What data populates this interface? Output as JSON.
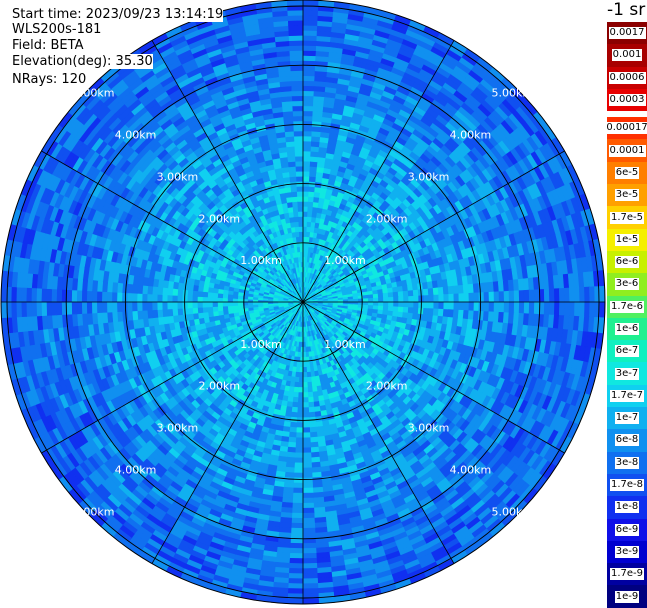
{
  "header": {
    "start_time": "Start time: 2023/09/23 13:14:19",
    "instrument": "WLS200s-181",
    "field": "Field: BETA",
    "elevation": "Elevation(deg): 35.30",
    "nrays": "NRays: 120"
  },
  "colorbar": {
    "unit_label": "-1 sr",
    "top_group": [
      {
        "label": "0.0017",
        "color": "#8b0000"
      },
      {
        "label": "0.001",
        "color": "#a80000"
      },
      {
        "label": "0.0006",
        "color": "#c80000"
      },
      {
        "label": "0.0003",
        "color": "#e80000"
      }
    ],
    "main_group": [
      {
        "label": "0.00017",
        "color": "#ff3000"
      },
      {
        "label": "0.0001",
        "color": "#ff5a00"
      },
      {
        "label": "6e-5",
        "color": "#ff7f00"
      },
      {
        "label": "3e-5",
        "color": "#ffa000"
      },
      {
        "label": "1.7e-5",
        "color": "#ffd000"
      },
      {
        "label": "1e-5",
        "color": "#f5ef00"
      },
      {
        "label": "6e-6",
        "color": "#c8f000"
      },
      {
        "label": "3e-6",
        "color": "#90ee20"
      },
      {
        "label": "1.7e-6",
        "color": "#50f060"
      },
      {
        "label": "1e-6",
        "color": "#20f090"
      },
      {
        "label": "6e-7",
        "color": "#10f0c0"
      },
      {
        "label": "3e-7",
        "color": "#10e8e0"
      },
      {
        "label": "1.7e-7",
        "color": "#10d0f0"
      },
      {
        "label": "1e-7",
        "color": "#10b0f0"
      },
      {
        "label": "6e-8",
        "color": "#1090f0"
      },
      {
        "label": "3e-8",
        "color": "#1070f0"
      },
      {
        "label": "1.7e-8",
        "color": "#1050f0"
      },
      {
        "label": "1e-8",
        "color": "#1030f0"
      },
      {
        "label": "6e-9",
        "color": "#1010e8"
      },
      {
        "label": "3e-9",
        "color": "#0000d0"
      },
      {
        "label": "1.7e-9",
        "color": "#0000a0"
      },
      {
        "label": "1e-9",
        "color": "#000080"
      }
    ]
  },
  "chart_data": {
    "type": "heatmap",
    "projection": "polar (PPI scan)",
    "field": "BETA",
    "nrays": 120,
    "ring_labels": [
      "1.00km",
      "2.00km",
      "3.00km",
      "4.00km",
      "5.00km"
    ],
    "ring_ranges_km": [
      1,
      2,
      3,
      4,
      5
    ],
    "max_range_km": 5.1,
    "spokes_deg": [
      0,
      30,
      60,
      90,
      120,
      150,
      180,
      210,
      240,
      270,
      300,
      330
    ],
    "value_profile": [
      {
        "range_km": 0.3,
        "beta": 1.5e-07
      },
      {
        "range_km": 1.0,
        "beta": 1.5e-07
      },
      {
        "range_km": 2.0,
        "beta": 1e-07
      },
      {
        "range_km": 3.0,
        "beta": 6e-08
      },
      {
        "range_km": 4.0,
        "beta": 3.5e-08
      },
      {
        "range_km": 5.0,
        "beta": 2.5e-08
      }
    ]
  }
}
